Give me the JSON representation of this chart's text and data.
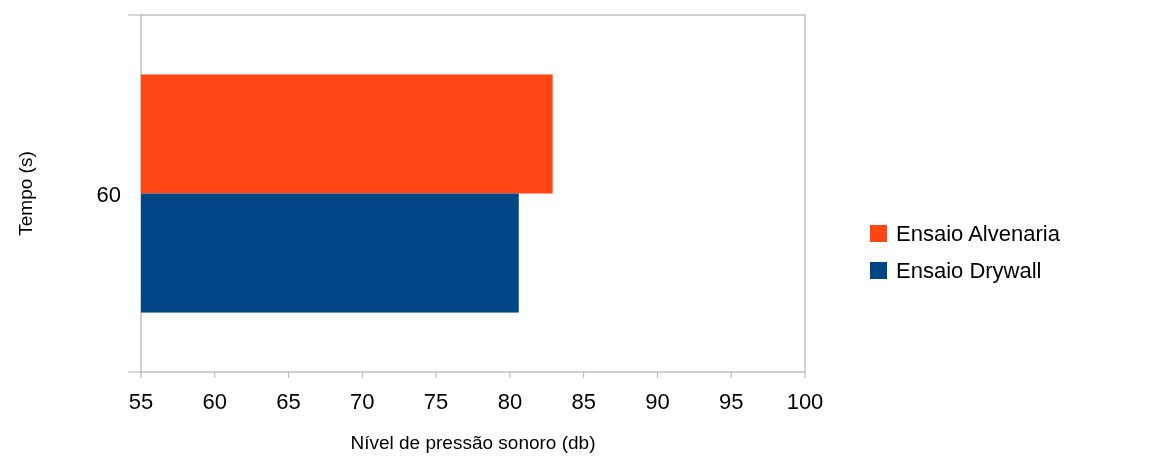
{
  "chart_data": {
    "type": "bar",
    "orientation": "horizontal",
    "xlabel": "Nível de pressão sonoro (db)",
    "ylabel": "Tempo (s)",
    "categories": [
      "60"
    ],
    "series": [
      {
        "name": "Ensaio Alvenaria",
        "color": "#ff4512",
        "values": [
          82.9
        ]
      },
      {
        "name": "Ensaio Drywall",
        "color": "#004586",
        "values": [
          80.6
        ]
      }
    ],
    "xlim": [
      55,
      100
    ],
    "xticks": [
      55,
      60,
      65,
      70,
      75,
      80,
      85,
      90,
      95,
      100
    ],
    "grid": false,
    "legend": "right"
  }
}
